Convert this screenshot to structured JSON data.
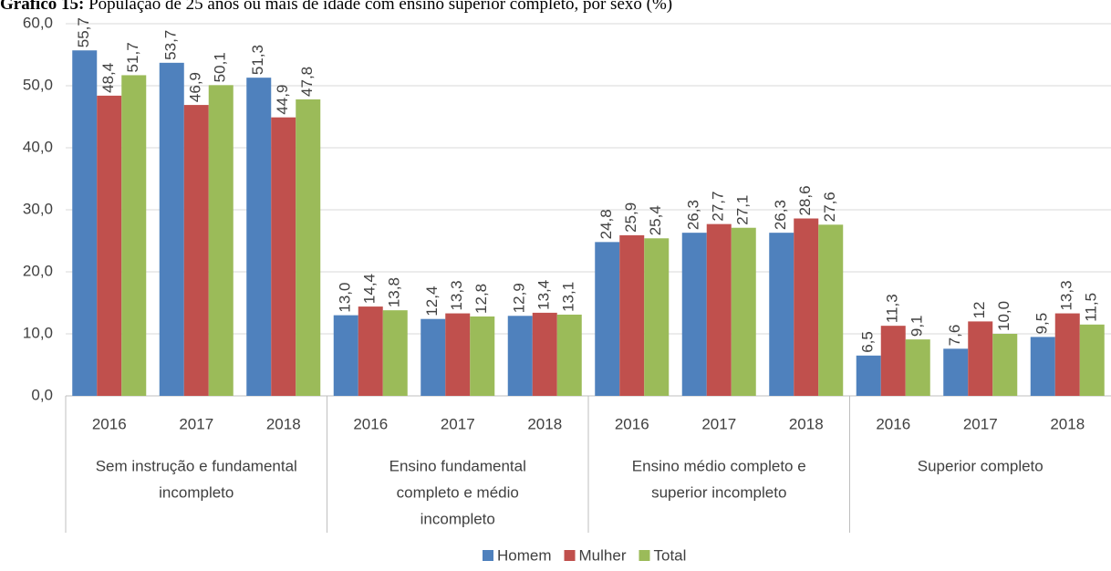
{
  "chart_data": {
    "type": "bar",
    "title_label": "Gráfico 15:",
    "title": "População de 25 anos ou mais de idade com ensino superior completo, por sexo (%)",
    "categories": [
      "2016",
      "2017",
      "2018",
      "2016",
      "2017",
      "2018",
      "2016",
      "2017",
      "2018",
      "2016",
      "2017",
      "2018"
    ],
    "groups": [
      {
        "lines": [
          "Sem instrução e fundamental",
          "incompleto"
        ],
        "size": 3
      },
      {
        "lines": [
          "Ensino fundamental",
          "completo e médio",
          "incompleto"
        ],
        "size": 3
      },
      {
        "lines": [
          "Ensino médio completo e",
          "superior incompleto"
        ],
        "size": 3
      },
      {
        "lines": [
          "Superior completo"
        ],
        "size": 3
      }
    ],
    "series": [
      {
        "name": "Homem",
        "color": "#4f81bd",
        "values": [
          55.7,
          53.7,
          51.3,
          13.0,
          12.4,
          12.9,
          24.8,
          26.3,
          26.3,
          6.5,
          7.6,
          9.5
        ],
        "value_labels": [
          "55,7",
          "53,7",
          "51,3",
          "13,0",
          "12,4",
          "12,9",
          "24,8",
          "26,3",
          "26,3",
          "6,5",
          "7,6",
          "9,5"
        ]
      },
      {
        "name": "Mulher",
        "color": "#c0504d",
        "values": [
          48.4,
          46.9,
          44.9,
          14.4,
          13.3,
          13.4,
          25.9,
          27.7,
          28.6,
          11.3,
          12,
          13.3
        ],
        "value_labels": [
          "48,4",
          "46,9",
          "44,9",
          "14,4",
          "13,3",
          "13,4",
          "25,9",
          "27,7",
          "28,6",
          "11,3",
          "12",
          "13,3"
        ]
      },
      {
        "name": "Total",
        "color": "#9bbb59",
        "values": [
          51.7,
          50.1,
          47.8,
          13.8,
          12.8,
          13.1,
          25.4,
          27.1,
          27.6,
          9.1,
          10.0,
          11.5
        ],
        "value_labels": [
          "51,7",
          "50,1",
          "47,8",
          "13,8",
          "12,8",
          "13,1",
          "25,4",
          "27,1",
          "27,6",
          "9,1",
          "10,0",
          "11,5"
        ]
      }
    ],
    "ylim": [
      0,
      60
    ],
    "yticks": [
      {
        "value": 0,
        "label": "0,0"
      },
      {
        "value": 10,
        "label": "10,0"
      },
      {
        "value": 20,
        "label": "20,0"
      },
      {
        "value": 30,
        "label": "30,0"
      },
      {
        "value": 40,
        "label": "40,0"
      },
      {
        "value": 50,
        "label": "50,0"
      },
      {
        "value": 60,
        "label": "60,0"
      }
    ],
    "grid": true,
    "legend": "bottom"
  }
}
